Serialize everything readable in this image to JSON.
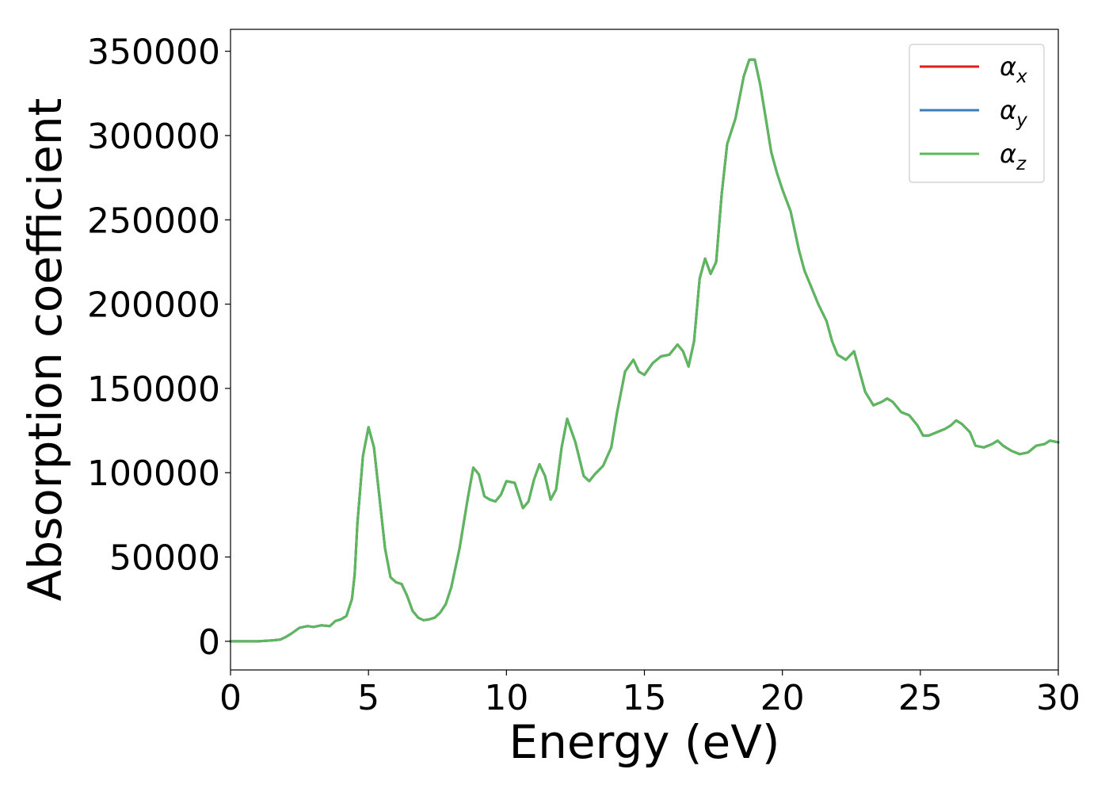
{
  "chart_data": {
    "type": "line",
    "title": "",
    "xlabel": "Energy (eV)",
    "ylabel": "Absorption coefficient",
    "xlim": [
      0,
      30
    ],
    "ylim": [
      -17000,
      363000
    ],
    "xticks": [
      0,
      5,
      10,
      15,
      20,
      25,
      30
    ],
    "yticks": [
      0,
      50000,
      100000,
      150000,
      200000,
      250000,
      300000,
      350000
    ],
    "grid": false,
    "legend_position": "top-right",
    "series": [
      {
        "name": "α_x",
        "label_base": "α",
        "label_sub": "x",
        "color": "#e41a1c",
        "x": [
          0,
          0.5,
          1,
          1.5,
          1.8,
          2.0,
          2.2,
          2.5,
          2.8,
          3.0,
          3.3,
          3.6,
          3.8,
          4.0,
          4.2,
          4.4,
          4.5,
          4.6,
          4.8,
          5.0,
          5.2,
          5.4,
          5.6,
          5.8,
          6.0,
          6.2,
          6.4,
          6.6,
          6.8,
          7.0,
          7.2,
          7.4,
          7.6,
          7.8,
          8.0,
          8.3,
          8.6,
          8.8,
          9.0,
          9.2,
          9.4,
          9.6,
          9.8,
          10.0,
          10.3,
          10.6,
          10.8,
          11.0,
          11.2,
          11.4,
          11.6,
          11.8,
          12.0,
          12.2,
          12.5,
          12.8,
          13.0,
          13.2,
          13.5,
          13.8,
          14.0,
          14.3,
          14.6,
          14.8,
          15.0,
          15.3,
          15.6,
          15.9,
          16.2,
          16.4,
          16.6,
          16.8,
          17.0,
          17.2,
          17.4,
          17.6,
          17.8,
          18.0,
          18.3,
          18.6,
          18.8,
          19.0,
          19.2,
          19.4,
          19.6,
          19.8,
          20.0,
          20.3,
          20.6,
          20.8,
          21.0,
          21.3,
          21.6,
          21.8,
          22.0,
          22.3,
          22.6,
          22.8,
          23.0,
          23.3,
          23.6,
          23.8,
          24.0,
          24.3,
          24.6,
          24.9,
          25.1,
          25.3,
          25.6,
          25.9,
          26.1,
          26.3,
          26.5,
          26.8,
          27.0,
          27.3,
          27.6,
          27.8,
          28.0,
          28.3,
          28.6,
          28.9,
          29.2,
          29.5,
          29.7,
          30.0
        ],
        "values": [
          0,
          0,
          0,
          500,
          1000,
          2500,
          4500,
          8000,
          9000,
          8500,
          9500,
          9000,
          12000,
          13000,
          15000,
          25000,
          40000,
          70000,
          110000,
          127000,
          115000,
          85000,
          55000,
          38000,
          35000,
          34000,
          27000,
          18000,
          14000,
          12500,
          13000,
          14000,
          17000,
          22000,
          32000,
          55000,
          85000,
          103000,
          99000,
          86000,
          84000,
          83000,
          87000,
          95000,
          94000,
          79000,
          83000,
          96000,
          105000,
          98000,
          84000,
          90000,
          115000,
          132000,
          118000,
          98000,
          95000,
          99000,
          104000,
          115000,
          135000,
          160000,
          167000,
          160000,
          158000,
          165000,
          169000,
          170000,
          176000,
          172000,
          163000,
          178000,
          215000,
          227000,
          218000,
          225000,
          265000,
          295000,
          310000,
          335000,
          345000,
          345000,
          330000,
          310000,
          290000,
          278000,
          268000,
          255000,
          232000,
          220000,
          212000,
          200000,
          190000,
          178000,
          170000,
          167000,
          172000,
          160000,
          148000,
          140000,
          142000,
          144000,
          142000,
          136000,
          134000,
          128000,
          122000,
          122000,
          124000,
          126000,
          128000,
          131000,
          129000,
          124000,
          116000,
          115000,
          117000,
          119000,
          116000,
          113000,
          111000,
          112000,
          116000,
          117000,
          119000,
          118000
        ]
      },
      {
        "name": "α_y",
        "label_base": "α",
        "label_sub": "y",
        "color": "#377eb8",
        "x": [
          0,
          0.5,
          1,
          1.5,
          1.8,
          2.0,
          2.2,
          2.5,
          2.8,
          3.0,
          3.3,
          3.6,
          3.8,
          4.0,
          4.2,
          4.4,
          4.5,
          4.6,
          4.8,
          5.0,
          5.2,
          5.4,
          5.6,
          5.8,
          6.0,
          6.2,
          6.4,
          6.6,
          6.8,
          7.0,
          7.2,
          7.4,
          7.6,
          7.8,
          8.0,
          8.3,
          8.6,
          8.8,
          9.0,
          9.2,
          9.4,
          9.6,
          9.8,
          10.0,
          10.3,
          10.6,
          10.8,
          11.0,
          11.2,
          11.4,
          11.6,
          11.8,
          12.0,
          12.2,
          12.5,
          12.8,
          13.0,
          13.2,
          13.5,
          13.8,
          14.0,
          14.3,
          14.6,
          14.8,
          15.0,
          15.3,
          15.6,
          15.9,
          16.2,
          16.4,
          16.6,
          16.8,
          17.0,
          17.2,
          17.4,
          17.6,
          17.8,
          18.0,
          18.3,
          18.6,
          18.8,
          19.0,
          19.2,
          19.4,
          19.6,
          19.8,
          20.0,
          20.3,
          20.6,
          20.8,
          21.0,
          21.3,
          21.6,
          21.8,
          22.0,
          22.3,
          22.6,
          22.8,
          23.0,
          23.3,
          23.6,
          23.8,
          24.0,
          24.3,
          24.6,
          24.9,
          25.1,
          25.3,
          25.6,
          25.9,
          26.1,
          26.3,
          26.5,
          26.8,
          27.0,
          27.3,
          27.6,
          27.8,
          28.0,
          28.3,
          28.6,
          28.9,
          29.2,
          29.5,
          29.7,
          30.0
        ],
        "values": [
          0,
          0,
          0,
          500,
          1000,
          2500,
          4500,
          8000,
          9000,
          8500,
          9500,
          9000,
          12000,
          13000,
          15000,
          25000,
          40000,
          70000,
          110000,
          127000,
          115000,
          85000,
          55000,
          38000,
          35000,
          34000,
          27000,
          18000,
          14000,
          12500,
          13000,
          14000,
          17000,
          22000,
          32000,
          55000,
          85000,
          103000,
          99000,
          86000,
          84000,
          83000,
          87000,
          95000,
          94000,
          79000,
          83000,
          96000,
          105000,
          98000,
          84000,
          90000,
          115000,
          132000,
          118000,
          98000,
          95000,
          99000,
          104000,
          115000,
          135000,
          160000,
          167000,
          160000,
          158000,
          165000,
          169000,
          170000,
          176000,
          172000,
          163000,
          178000,
          215000,
          227000,
          218000,
          225000,
          265000,
          295000,
          310000,
          335000,
          345000,
          345000,
          330000,
          310000,
          290000,
          278000,
          268000,
          255000,
          232000,
          220000,
          212000,
          200000,
          190000,
          178000,
          170000,
          167000,
          172000,
          160000,
          148000,
          140000,
          142000,
          144000,
          142000,
          136000,
          134000,
          128000,
          122000,
          122000,
          124000,
          126000,
          128000,
          131000,
          129000,
          124000,
          116000,
          115000,
          117000,
          119000,
          116000,
          113000,
          111000,
          112000,
          116000,
          117000,
          119000,
          118000
        ]
      },
      {
        "name": "α_z",
        "label_base": "α",
        "label_sub": "z",
        "color": "#5cb85c",
        "x": [
          0,
          0.5,
          1,
          1.5,
          1.8,
          2.0,
          2.2,
          2.5,
          2.8,
          3.0,
          3.3,
          3.6,
          3.8,
          4.0,
          4.2,
          4.4,
          4.5,
          4.6,
          4.8,
          5.0,
          5.2,
          5.4,
          5.6,
          5.8,
          6.0,
          6.2,
          6.4,
          6.6,
          6.8,
          7.0,
          7.2,
          7.4,
          7.6,
          7.8,
          8.0,
          8.3,
          8.6,
          8.8,
          9.0,
          9.2,
          9.4,
          9.6,
          9.8,
          10.0,
          10.3,
          10.6,
          10.8,
          11.0,
          11.2,
          11.4,
          11.6,
          11.8,
          12.0,
          12.2,
          12.5,
          12.8,
          13.0,
          13.2,
          13.5,
          13.8,
          14.0,
          14.3,
          14.6,
          14.8,
          15.0,
          15.3,
          15.6,
          15.9,
          16.2,
          16.4,
          16.6,
          16.8,
          17.0,
          17.2,
          17.4,
          17.6,
          17.8,
          18.0,
          18.3,
          18.6,
          18.8,
          19.0,
          19.2,
          19.4,
          19.6,
          19.8,
          20.0,
          20.3,
          20.6,
          20.8,
          21.0,
          21.3,
          21.6,
          21.8,
          22.0,
          22.3,
          22.6,
          22.8,
          23.0,
          23.3,
          23.6,
          23.8,
          24.0,
          24.3,
          24.6,
          24.9,
          25.1,
          25.3,
          25.6,
          25.9,
          26.1,
          26.3,
          26.5,
          26.8,
          27.0,
          27.3,
          27.6,
          27.8,
          28.0,
          28.3,
          28.6,
          28.9,
          29.2,
          29.5,
          29.7,
          30.0
        ],
        "values": [
          0,
          0,
          0,
          500,
          1000,
          2500,
          4500,
          8000,
          9000,
          8500,
          9500,
          9000,
          12000,
          13000,
          15000,
          25000,
          40000,
          70000,
          110000,
          127000,
          115000,
          85000,
          55000,
          38000,
          35000,
          34000,
          27000,
          18000,
          14000,
          12500,
          13000,
          14000,
          17000,
          22000,
          32000,
          55000,
          85000,
          103000,
          99000,
          86000,
          84000,
          83000,
          87000,
          95000,
          94000,
          79000,
          83000,
          96000,
          105000,
          98000,
          84000,
          90000,
          115000,
          132000,
          118000,
          98000,
          95000,
          99000,
          104000,
          115000,
          135000,
          160000,
          167000,
          160000,
          158000,
          165000,
          169000,
          170000,
          176000,
          172000,
          163000,
          178000,
          215000,
          227000,
          218000,
          225000,
          265000,
          295000,
          310000,
          335000,
          345000,
          345000,
          330000,
          310000,
          290000,
          278000,
          268000,
          255000,
          232000,
          220000,
          212000,
          200000,
          190000,
          178000,
          170000,
          167000,
          172000,
          160000,
          148000,
          140000,
          142000,
          144000,
          142000,
          136000,
          134000,
          128000,
          122000,
          122000,
          124000,
          126000,
          128000,
          131000,
          129000,
          124000,
          116000,
          115000,
          117000,
          119000,
          116000,
          113000,
          111000,
          112000,
          116000,
          117000,
          119000,
          118000
        ]
      }
    ]
  }
}
